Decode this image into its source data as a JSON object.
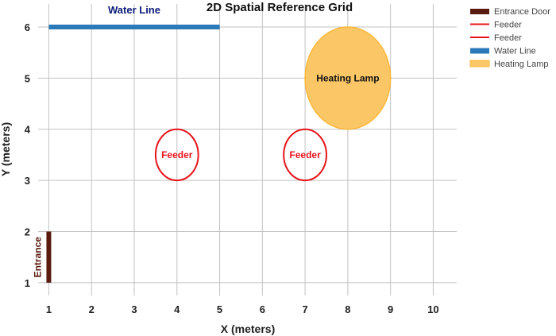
{
  "chart_data": {
    "type": "scatter",
    "title": "2D Spatial Reference Grid",
    "xlabel": "X (meters)",
    "ylabel": "Y (meters)",
    "xlim": [
      0.75,
      10.55
    ],
    "ylim": [
      0.75,
      6.45
    ],
    "xticks": [
      1,
      2,
      3,
      4,
      5,
      6,
      7,
      8,
      9,
      10
    ],
    "yticks": [
      1,
      2,
      3,
      4,
      5,
      6
    ],
    "grid": true,
    "legend_position": "right",
    "shapes": [
      {
        "name": "Entrance Door",
        "kind": "line",
        "x": [
          1,
          1
        ],
        "y": [
          1,
          2
        ],
        "color": "#5a1a0e",
        "label": "Entrance"
      },
      {
        "name": "Feeder",
        "kind": "ellipse",
        "center": [
          4,
          3.5
        ],
        "radius_x": 0.5,
        "radius_y": 0.5,
        "color": "#e8141b",
        "label": "Feeder"
      },
      {
        "name": "Feeder",
        "kind": "ellipse",
        "center": [
          7,
          3.5
        ],
        "radius_x": 0.5,
        "radius_y": 0.5,
        "color": "#e8141b",
        "label": "Feeder"
      },
      {
        "name": "Water Line",
        "kind": "line",
        "x": [
          1,
          5
        ],
        "y": [
          6,
          6
        ],
        "color": "#2a7ab9",
        "label": "Water Line"
      },
      {
        "name": "Heating Lamp",
        "kind": "ellipse",
        "center": [
          8,
          5
        ],
        "radius_x": 1,
        "radius_y": 1,
        "color": "#fbb83c",
        "fill": "#fbc766",
        "label": "Heating Lamp"
      }
    ]
  }
}
